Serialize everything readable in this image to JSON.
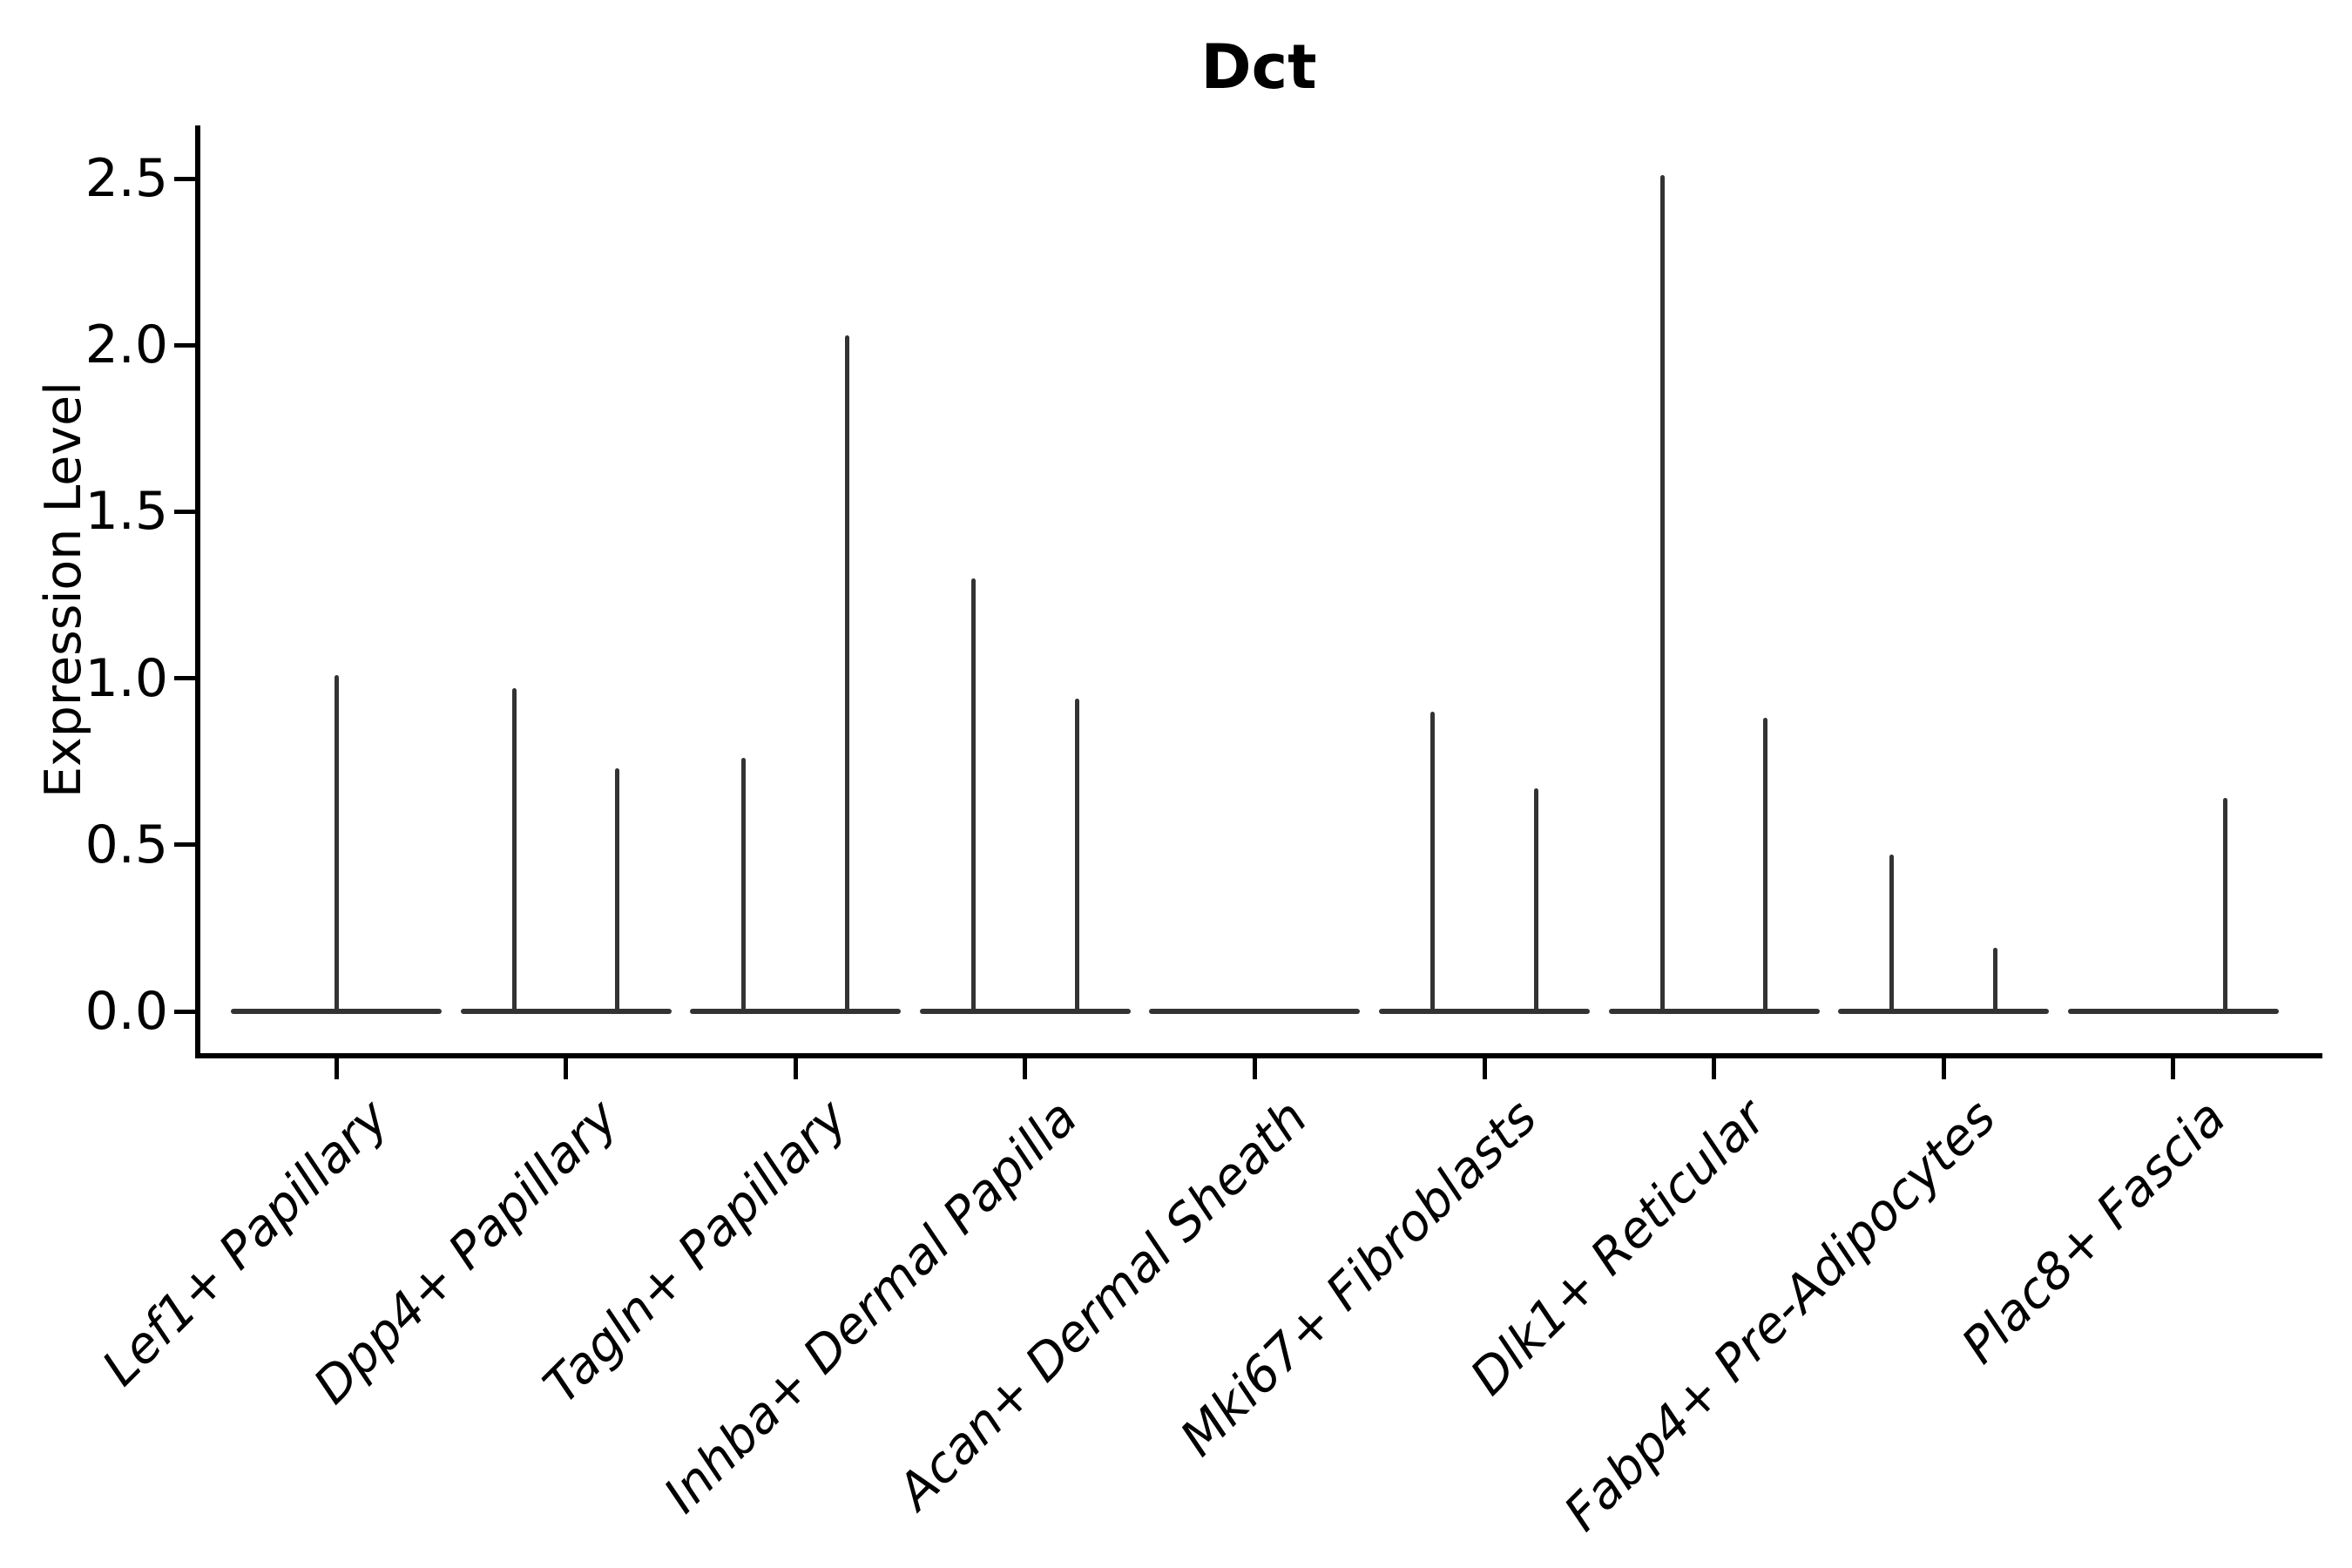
{
  "figure": {
    "title": "Dct",
    "y_axis_label": "Expression Level",
    "background_color": "#ffffff",
    "axis_color": "#000000",
    "violin_color": "#333333",
    "text_color": "#000000"
  },
  "chart_data": {
    "type": "violin",
    "title": "Dct",
    "xlabel": "",
    "ylabel": "Expression Level",
    "ylim": [
      -0.13,
      2.66
    ],
    "grid": false,
    "legend": false,
    "yticklabels": [
      "0.0",
      "0.5",
      "1.0",
      "1.5",
      "2.0",
      "2.5"
    ],
    "categories": [
      "Lef1+ Papillary",
      "Dpp4+ Papillary",
      "Tagln+ Papillary",
      "Inhba+ Dermal Papilla",
      "Acan+ Dermal Sheath",
      "Mki67+ Fibroblasts",
      "Dlk1+ Reticular",
      "Fabp4+ Pre-Adipocytes",
      "Plac8+ Fascia"
    ],
    "violins": [
      {
        "category": "Lef1+ Papillary",
        "baseline": 0.0,
        "spikes": [
          {
            "offset": 0.0,
            "max": 1.01
          }
        ]
      },
      {
        "category": "Dpp4+ Papillary",
        "baseline": 0.0,
        "spikes": [
          {
            "offset": -0.225,
            "max": 0.97
          },
          {
            "offset": 0.225,
            "max": 0.73
          }
        ]
      },
      {
        "category": "Tagln+ Papillary",
        "baseline": 0.0,
        "spikes": [
          {
            "offset": -0.225,
            "max": 0.76
          },
          {
            "offset": 0.225,
            "max": 2.03
          }
        ]
      },
      {
        "category": "Inhba+ Dermal Papilla",
        "baseline": 0.0,
        "spikes": [
          {
            "offset": -0.225,
            "max": 1.3
          },
          {
            "offset": 0.225,
            "max": 0.94
          }
        ]
      },
      {
        "category": "Acan+ Dermal Sheath",
        "baseline": 0.0,
        "spikes": []
      },
      {
        "category": "Mki67+ Fibroblasts",
        "baseline": 0.0,
        "spikes": [
          {
            "offset": -0.225,
            "max": 0.9
          },
          {
            "offset": 0.225,
            "max": 0.67
          }
        ]
      },
      {
        "category": "Dlk1+ Reticular",
        "baseline": 0.0,
        "spikes": [
          {
            "offset": -0.225,
            "max": 2.51
          },
          {
            "offset": 0.225,
            "max": 0.88
          }
        ]
      },
      {
        "category": "Fabp4+ Pre-Adipocytes",
        "baseline": 0.0,
        "spikes": [
          {
            "offset": -0.225,
            "max": 0.47
          },
          {
            "offset": 0.225,
            "max": 0.19
          }
        ]
      },
      {
        "category": "Plac8+ Fascia",
        "baseline": 0.0,
        "spikes": [
          {
            "offset": 0.225,
            "max": 0.64
          }
        ]
      }
    ]
  }
}
